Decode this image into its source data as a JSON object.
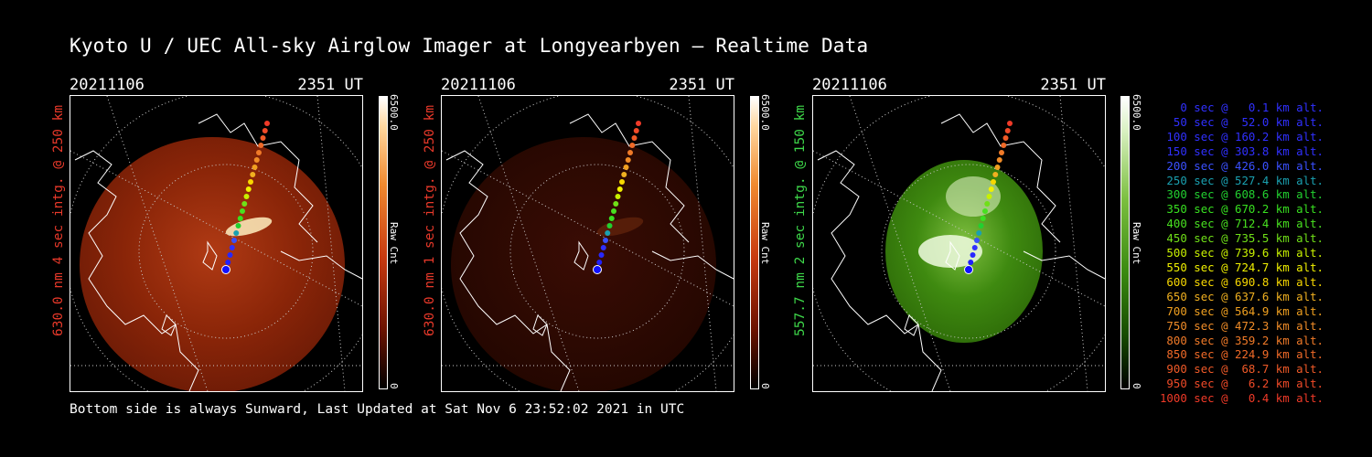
{
  "title": "Kyoto U / UEC All-sky Airglow Imager at Longyearbyen — Realtime Data",
  "footer": "Bottom side is always Sunward, Last Updated at Sat Nov  6 23:52:02 2021 in UTC",
  "panels": [
    {
      "date": "20211106",
      "time": "2351 UT",
      "label": "630.0 nm 4 sec intg. @ 250 km",
      "label_color": "#e8392a",
      "cbar_max": "6500.0",
      "cbar_min": "0",
      "cbar_unit": "Raw Cnt",
      "colormap": "red",
      "brightness": "bright"
    },
    {
      "date": "20211106",
      "time": "2351 UT",
      "label": "630.0 nm 1 sec intg. @ 250 km",
      "label_color": "#e8392a",
      "cbar_max": "6500.0",
      "cbar_min": "0",
      "cbar_unit": "Raw Cnt",
      "colormap": "red",
      "brightness": "dim"
    },
    {
      "date": "20211106",
      "time": "2351 UT",
      "label": "557.7 nm 2 sec intg. @ 150 km",
      "label_color": "#3ed84a",
      "cbar_max": "6500.0",
      "cbar_min": "0",
      "cbar_unit": "Raw Cnt",
      "colormap": "green",
      "brightness": "bright"
    }
  ],
  "legend": [
    {
      "text": "   0 sec @   0.1 km alt.",
      "color": "#3030ff"
    },
    {
      "text": "  50 sec @  52.0 km alt.",
      "color": "#3030ff"
    },
    {
      "text": " 100 sec @ 160.2 km alt.",
      "color": "#3030ff"
    },
    {
      "text": " 150 sec @ 303.8 km alt.",
      "color": "#3030ff"
    },
    {
      "text": " 200 sec @ 426.0 km alt.",
      "color": "#3a50ff"
    },
    {
      "text": " 250 sec @ 527.4 km alt.",
      "color": "#1aa0b0"
    },
    {
      "text": " 300 sec @ 608.6 km alt.",
      "color": "#22d030"
    },
    {
      "text": " 350 sec @ 670.2 km alt.",
      "color": "#38e020"
    },
    {
      "text": " 400 sec @ 712.4 km alt.",
      "color": "#48e020"
    },
    {
      "text": " 450 sec @ 735.5 km alt.",
      "color": "#70e018"
    },
    {
      "text": " 500 sec @ 739.6 km alt.",
      "color": "#c8f000"
    },
    {
      "text": " 550 sec @ 724.7 km alt.",
      "color": "#f0f000"
    },
    {
      "text": " 600 sec @ 690.8 km alt.",
      "color": "#f8d800"
    },
    {
      "text": " 650 sec @ 637.6 km alt.",
      "color": "#f0b020"
    },
    {
      "text": " 700 sec @ 564.9 km alt.",
      "color": "#f0a020"
    },
    {
      "text": " 750 sec @ 472.3 km alt.",
      "color": "#f08c28"
    },
    {
      "text": " 800 sec @ 359.2 km alt.",
      "color": "#f07a28"
    },
    {
      "text": " 850 sec @ 224.9 km alt.",
      "color": "#f06a28"
    },
    {
      "text": " 900 sec @  68.7 km alt.",
      "color": "#f05a28"
    },
    {
      "text": " 950 sec @   6.2 km alt.",
      "color": "#f04a28"
    },
    {
      "text": "1000 sec @   0.4 km alt.",
      "color": "#f03a28"
    }
  ],
  "track_colors": [
    "#1010ff",
    "#2020ff",
    "#2828ff",
    "#3030ff",
    "#3a50ff",
    "#1aa0b0",
    "#22d030",
    "#38e020",
    "#48e020",
    "#70e018",
    "#c8f000",
    "#f0f000",
    "#f8d800",
    "#f0b020",
    "#f0a020",
    "#f08c28",
    "#f07a28",
    "#f06a28",
    "#f05a28",
    "#f04a28",
    "#f03a28"
  ]
}
